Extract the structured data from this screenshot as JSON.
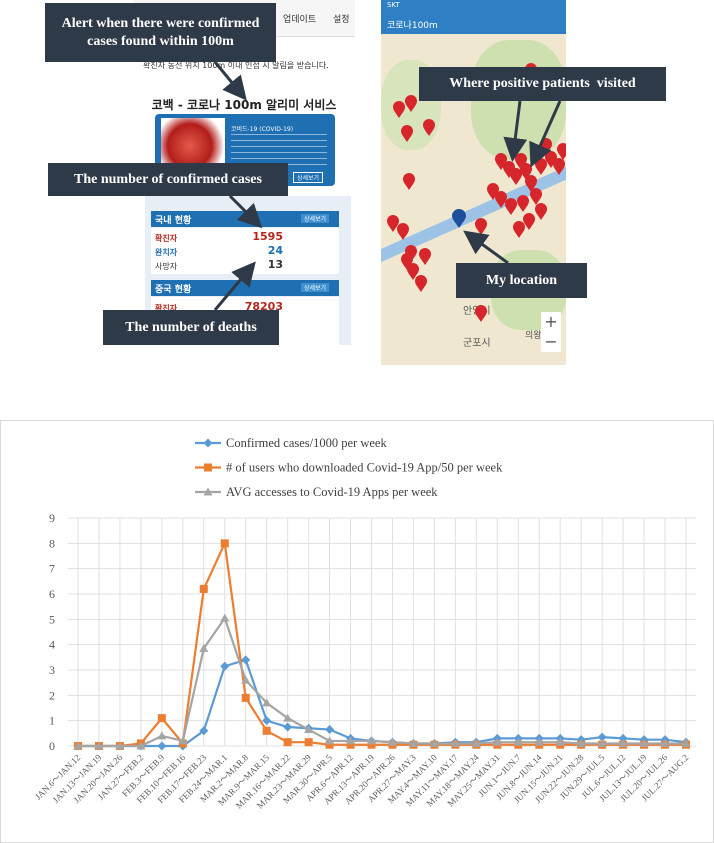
{
  "screenshots": {
    "app": {
      "menu": [
        "업데이트",
        "설정"
      ],
      "notice": "확진자 동선 위치 100m 이내 인접 시 알림을 받습니다.",
      "service_title": "코백 - 코로나 100m 알리미 서비스",
      "card_title": "코비드-19 (COVID-19)",
      "detail_button": "상세보기",
      "domestic": {
        "header": "국내 현황",
        "rows": [
          {
            "label": "확진자",
            "value": 1595
          },
          {
            "label": "완치자",
            "value": 24
          },
          {
            "label": "사망자",
            "value": 13
          }
        ]
      },
      "china": {
        "header": "중국 현황",
        "rows": [
          {
            "label": "확진자",
            "value": 78203
          }
        ]
      }
    },
    "map": {
      "carrier": "SKT",
      "app_title": "코로나100m",
      "places": [
        "안양시",
        "군포시",
        "의왕시"
      ]
    }
  },
  "callouts": [
    "Alert when there were confirmed cases found within 100m",
    "The number of confirmed cases",
    "The number of deaths",
    "Where positive patients  visited",
    "My location"
  ],
  "chart_data": {
    "type": "line",
    "categories": [
      "JAN.6～JAN.12",
      "JAN.13～JAN.19",
      "JAN.20～JAN.26",
      "JAN.27～FEB.2",
      "FEB.3～FEB.9",
      "FEB.10～FEB.16",
      "FEB.17～FEB.23",
      "FEB.24～MAR.1",
      "MAR.2～MAR.8",
      "MAR.9～MAR.15",
      "MAR.16～MAR.22",
      "MAR.23～MAR.29",
      "MAR.30～APR.5",
      "APR.6～APR.12",
      "APR.13～APR.19",
      "APR.20～APR.26",
      "APR.27～MAY.3",
      "MAY.4～MAY.10",
      "MAY.11～MAY.17",
      "MAY.18～MAY.24",
      "MAY.25～MAY.31",
      "JUN.1～JUN.7",
      "JUN.8～JUN.14",
      "JUN.15～JUN.21",
      "JUN.22～JUN.28",
      "JUN.29～JUL.5",
      "JUL.6～JUL.12",
      "JUL.13～JUL.19",
      "JUL.20～JUL.26",
      "JUL.27～AUG.2"
    ],
    "series": [
      {
        "name": "Confirmed cases/1000 per week",
        "color": "#5b9bd5",
        "marker": "diamond",
        "values": [
          0,
          0,
          0,
          0,
          0,
          0,
          0.6,
          3.15,
          3.4,
          1.0,
          0.75,
          0.7,
          0.65,
          0.3,
          0.2,
          0.15,
          0.1,
          0.1,
          0.15,
          0.15,
          0.3,
          0.3,
          0.3,
          0.3,
          0.25,
          0.35,
          0.3,
          0.25,
          0.25,
          0.15
        ]
      },
      {
        "name": "# of users who downloaded Covid-19 App/50 per week",
        "color": "#ed7d31",
        "marker": "square",
        "values": [
          0,
          0,
          0,
          0.1,
          1.1,
          0.1,
          6.2,
          8.0,
          1.9,
          0.6,
          0.15,
          0.15,
          0.05,
          0.05,
          0.05,
          0.05,
          0.05,
          0.05,
          0.05,
          0.05,
          0.05,
          0.05,
          0.05,
          0.05,
          0.05,
          0.05,
          0.05,
          0.05,
          0.05,
          0.05
        ]
      },
      {
        "name": "AVG accesses to Covid-19 Apps per week",
        "color": "#a5a5a5",
        "marker": "triangle",
        "values": [
          0,
          0,
          0,
          0,
          0.4,
          0.2,
          3.85,
          5.05,
          2.6,
          1.7,
          1.1,
          0.65,
          0.2,
          0.2,
          0.2,
          0.15,
          0.1,
          0.1,
          0.1,
          0.1,
          0.15,
          0.15,
          0.15,
          0.15,
          0.1,
          0.1,
          0.1,
          0.1,
          0.1,
          0.1
        ]
      }
    ],
    "ylim": [
      0,
      9
    ],
    "yticks": [
      0,
      1,
      2,
      3,
      4,
      5,
      6,
      7,
      8,
      9
    ],
    "grid": true,
    "legend": "top"
  }
}
